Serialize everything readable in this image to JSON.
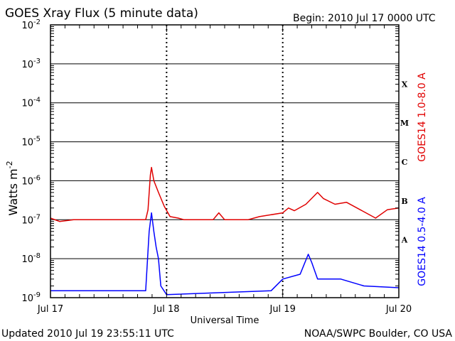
{
  "chart_data": {
    "type": "line",
    "title": "GOES Xray Flux (5 minute data)",
    "begin_text": "Begin:  2010 Jul 17 0000 UTC",
    "xlabel": "Universal Time",
    "ylabel_base": "Watts m",
    "ylabel_exp": "-2",
    "x_range_days": [
      0,
      3
    ],
    "x_ticks": [
      {
        "day": 0,
        "label": "Jul 17"
      },
      {
        "day": 1,
        "label": "Jul 18"
      },
      {
        "day": 2,
        "label": "Jul 19"
      },
      {
        "day": 3,
        "label": "Jul 20"
      }
    ],
    "y_scale": "log",
    "y_range_exp": [
      -9,
      -2
    ],
    "y_ticks": [
      {
        "exp": -2,
        "base": "10",
        "sup": "-2"
      },
      {
        "exp": -3,
        "base": "10",
        "sup": "-3"
      },
      {
        "exp": -4,
        "base": "10",
        "sup": "-4"
      },
      {
        "exp": -5,
        "base": "10",
        "sup": "-5"
      },
      {
        "exp": -6,
        "base": "10",
        "sup": "-6"
      },
      {
        "exp": -7,
        "base": "10",
        "sup": "-7"
      },
      {
        "exp": -8,
        "base": "10",
        "sup": "-8"
      },
      {
        "exp": -9,
        "base": "10",
        "sup": "-9"
      }
    ],
    "flare_classes": [
      {
        "label": "X",
        "exp": -3.5
      },
      {
        "label": "M",
        "exp": -4.5
      },
      {
        "label": "C",
        "exp": -5.5
      },
      {
        "label": "B",
        "exp": -6.5
      },
      {
        "label": "A",
        "exp": -7.5
      }
    ],
    "series": [
      {
        "name": "GOES14 1.0-8.0 A",
        "color": "#e00000",
        "points": [
          [
            0.0,
            1.1e-07
          ],
          [
            0.08,
            9e-08
          ],
          [
            0.2,
            1e-07
          ],
          [
            0.4,
            1e-07
          ],
          [
            0.6,
            1e-07
          ],
          [
            0.82,
            1e-07
          ],
          [
            0.84,
            1.8e-07
          ],
          [
            0.86,
            1.4e-06
          ],
          [
            0.87,
            2.2e-06
          ],
          [
            0.89,
            1e-06
          ],
          [
            0.93,
            5e-07
          ],
          [
            0.98,
            2.2e-07
          ],
          [
            1.03,
            1.2e-07
          ],
          [
            1.1,
            1.1e-07
          ],
          [
            1.15,
            1e-07
          ],
          [
            1.4,
            1e-07
          ],
          [
            1.45,
            1.5e-07
          ],
          [
            1.5,
            1e-07
          ],
          [
            1.7,
            1e-07
          ],
          [
            1.8,
            1.2e-07
          ],
          [
            2.0,
            1.5e-07
          ],
          [
            2.05,
            2e-07
          ],
          [
            2.1,
            1.7e-07
          ],
          [
            2.2,
            2.5e-07
          ],
          [
            2.3,
            5e-07
          ],
          [
            2.35,
            3.5e-07
          ],
          [
            2.45,
            2.5e-07
          ],
          [
            2.55,
            2.8e-07
          ],
          [
            2.7,
            1.6e-07
          ],
          [
            2.8,
            1.1e-07
          ],
          [
            2.9,
            1.8e-07
          ],
          [
            3.0,
            2e-07
          ]
        ]
      },
      {
        "name": "GOES14 0.5-4.0 A",
        "color": "#0000ff",
        "points": [
          [
            0.0,
            1.5e-09
          ],
          [
            0.82,
            1.5e-09
          ],
          [
            0.85,
            5e-08
          ],
          [
            0.87,
            1.5e-07
          ],
          [
            0.89,
            5e-08
          ],
          [
            0.91,
            2e-08
          ],
          [
            0.93,
            1e-08
          ],
          [
            0.95,
            2e-09
          ],
          [
            1.0,
            1.2e-09
          ],
          [
            1.9,
            1.5e-09
          ],
          [
            2.0,
            3e-09
          ],
          [
            2.15,
            4e-09
          ],
          [
            2.22,
            1.3e-08
          ],
          [
            2.25,
            8e-09
          ],
          [
            2.3,
            3e-09
          ],
          [
            2.5,
            3e-09
          ],
          [
            2.7,
            2e-09
          ],
          [
            3.0,
            1.8e-09
          ]
        ]
      }
    ],
    "grid": true
  },
  "footer": {
    "updated": "Updated 2010 Jul 19 23:55:11 UTC",
    "source": "NOAA/SWPC Boulder, CO USA"
  }
}
